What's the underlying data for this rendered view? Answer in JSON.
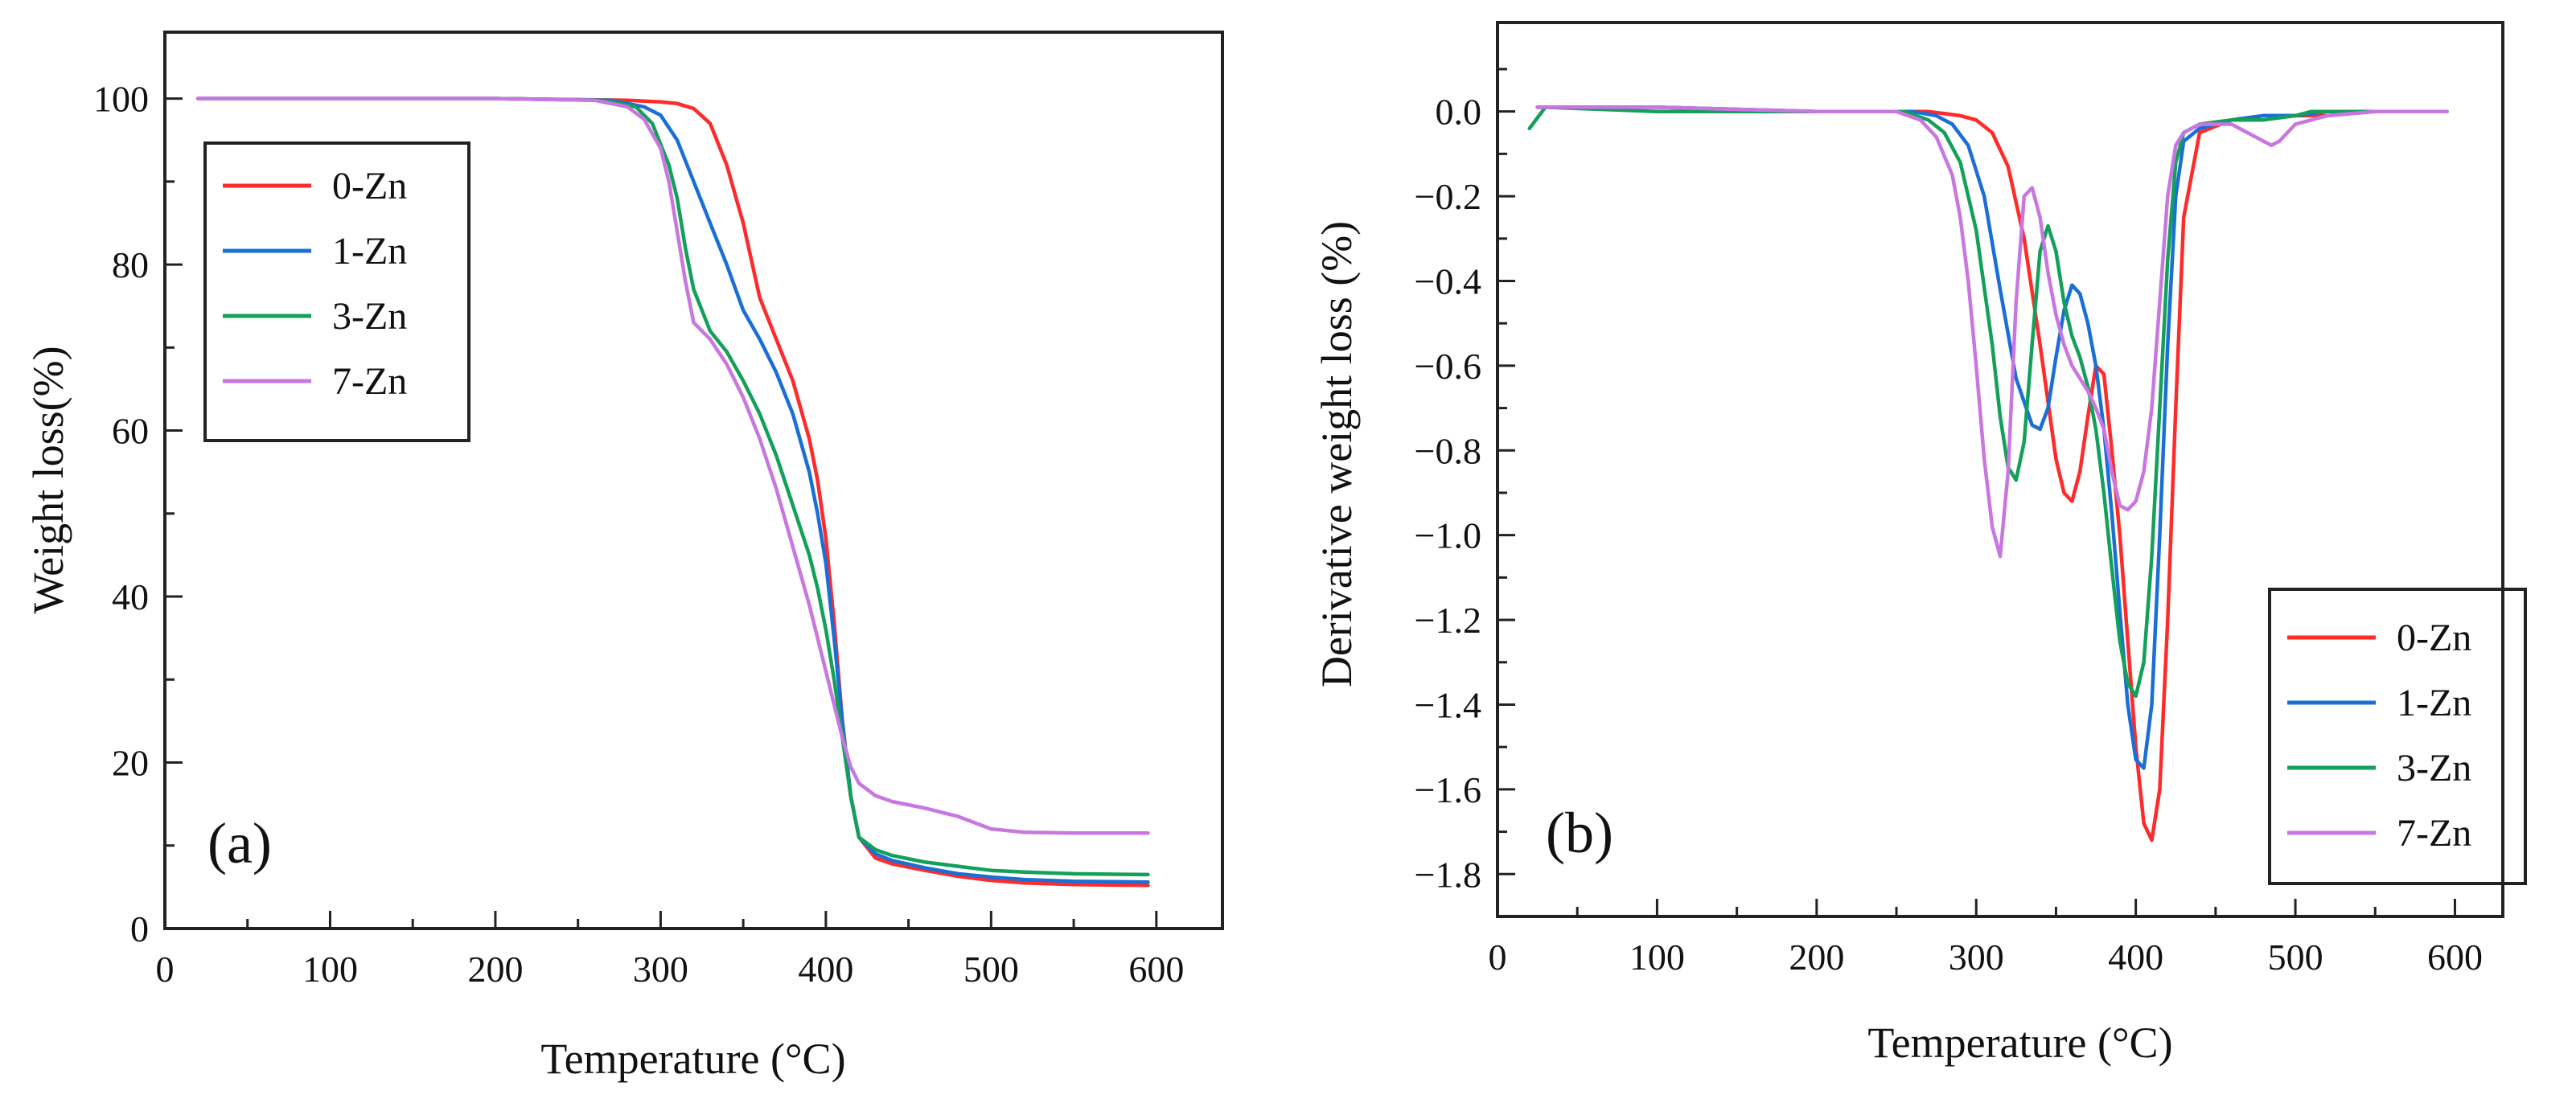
{
  "chart_data": [
    {
      "type": "line",
      "panel": "(a)",
      "xlabel": "Temperature (°C)",
      "ylabel": "Weight loss(%)",
      "xlim": [
        0,
        640
      ],
      "ylim": [
        0,
        108
      ],
      "xticks": [
        0,
        100,
        200,
        300,
        400,
        500,
        600
      ],
      "yticks": [
        0,
        20,
        40,
        60,
        80,
        100
      ],
      "legend_position": "top-left",
      "series": [
        {
          "name": "0-Zn",
          "color": "#ff2a2a",
          "x": [
            20,
            100,
            200,
            280,
            300,
            310,
            320,
            330,
            340,
            350,
            360,
            370,
            380,
            390,
            395,
            400,
            405,
            410,
            415,
            420,
            430,
            440,
            460,
            480,
            500,
            520,
            550,
            595
          ],
          "y": [
            100,
            100,
            100,
            99.8,
            99.6,
            99.4,
            98.8,
            97,
            92,
            85,
            76,
            71,
            66,
            59,
            54,
            47,
            37,
            25,
            16,
            11,
            8.5,
            7.8,
            7,
            6.3,
            5.8,
            5.5,
            5.3,
            5.2
          ]
        },
        {
          "name": "1-Zn",
          "color": "#1a6fd6",
          "x": [
            20,
            100,
            200,
            270,
            290,
            300,
            310,
            320,
            330,
            340,
            350,
            360,
            370,
            380,
            390,
            395,
            400,
            405,
            410,
            415,
            420,
            430,
            440,
            460,
            480,
            500,
            520,
            550,
            595
          ],
          "y": [
            100,
            100,
            100,
            99.8,
            99,
            98,
            95,
            90,
            85,
            80,
            74.5,
            71,
            67,
            62,
            55,
            50,
            44,
            35,
            25,
            16,
            11,
            9,
            8.2,
            7.3,
            6.6,
            6.2,
            5.9,
            5.7,
            5.6
          ]
        },
        {
          "name": "3-Zn",
          "color": "#13a05a",
          "x": [
            20,
            100,
            200,
            265,
            285,
            295,
            305,
            310,
            315,
            320,
            330,
            340,
            350,
            360,
            370,
            380,
            390,
            395,
            400,
            405,
            410,
            415,
            420,
            430,
            440,
            460,
            480,
            500,
            520,
            550,
            595
          ],
          "y": [
            100,
            100,
            100,
            99.8,
            99,
            97,
            92,
            88,
            82,
            77,
            72,
            69.5,
            66,
            62,
            57,
            51,
            45,
            41,
            36,
            30,
            23,
            16,
            11,
            9.5,
            8.8,
            8,
            7.5,
            7,
            6.8,
            6.6,
            6.5
          ]
        },
        {
          "name": "7-Zn",
          "color": "#c877e0",
          "x": [
            20,
            100,
            200,
            260,
            280,
            290,
            300,
            305,
            310,
            315,
            320,
            330,
            340,
            350,
            360,
            370,
            380,
            390,
            395,
            400,
            405,
            410,
            415,
            420,
            430,
            440,
            460,
            480,
            500,
            520,
            550,
            595
          ],
          "y": [
            100,
            100,
            100,
            99.8,
            99,
            97.5,
            94,
            90,
            84,
            78,
            73,
            71,
            68,
            64,
            59,
            53,
            46,
            39,
            35,
            31,
            27,
            23,
            19.5,
            17.5,
            16,
            15.3,
            14.5,
            13.5,
            12,
            11.6,
            11.5,
            11.5
          ]
        }
      ]
    },
    {
      "type": "line",
      "panel": "(b)",
      "xlabel": "Temperature (°C)",
      "ylabel": "Derivative weight loss (%)",
      "xlim": [
        0,
        630
      ],
      "ylim": [
        -1.9,
        0.21
      ],
      "xticks": [
        0,
        100,
        200,
        300,
        400,
        500,
        600
      ],
      "yticks": [
        0.0,
        -0.2,
        -0.4,
        -0.6,
        -0.8,
        -1.0,
        -1.2,
        -1.4,
        -1.6,
        -1.8
      ],
      "legend_position": "bottom-right",
      "series": [
        {
          "name": "0-Zn",
          "color": "#ff2a2a",
          "x": [
            25,
            100,
            200,
            270,
            290,
            300,
            310,
            320,
            330,
            340,
            350,
            355,
            360,
            365,
            370,
            375,
            380,
            385,
            390,
            395,
            400,
            405,
            410,
            415,
            420,
            425,
            430,
            440,
            460,
            480,
            500,
            520,
            550,
            595
          ],
          "y": [
            0.01,
            0.01,
            0,
            0,
            -0.01,
            -0.02,
            -0.05,
            -0.13,
            -0.3,
            -0.55,
            -0.82,
            -0.9,
            -0.92,
            -0.85,
            -0.72,
            -0.6,
            -0.62,
            -0.8,
            -1.0,
            -1.25,
            -1.5,
            -1.68,
            -1.72,
            -1.6,
            -1.2,
            -0.7,
            -0.25,
            -0.05,
            -0.02,
            -0.01,
            -0.01,
            -0.01,
            0,
            0
          ]
        },
        {
          "name": "1-Zn",
          "color": "#1a6fd6",
          "x": [
            25,
            100,
            200,
            260,
            275,
            285,
            295,
            305,
            315,
            325,
            335,
            340,
            345,
            350,
            355,
            360,
            365,
            370,
            375,
            380,
            385,
            390,
            395,
            400,
            405,
            410,
            415,
            420,
            425,
            430,
            440,
            460,
            480,
            500,
            520,
            550,
            595
          ],
          "y": [
            0.01,
            0.01,
            0,
            0,
            -0.01,
            -0.03,
            -0.08,
            -0.2,
            -0.42,
            -0.63,
            -0.74,
            -0.75,
            -0.7,
            -0.58,
            -0.47,
            -0.41,
            -0.43,
            -0.5,
            -0.6,
            -0.75,
            -0.95,
            -1.18,
            -1.4,
            -1.53,
            -1.55,
            -1.4,
            -1.0,
            -0.55,
            -0.2,
            -0.07,
            -0.04,
            -0.02,
            -0.01,
            -0.01,
            0,
            0,
            0
          ]
        },
        {
          "name": "3-Zn",
          "color": "#13a05a",
          "x": [
            20,
            30,
            100,
            200,
            255,
            270,
            280,
            290,
            300,
            310,
            315,
            320,
            325,
            330,
            335,
            340,
            345,
            350,
            355,
            360,
            365,
            370,
            375,
            380,
            385,
            390,
            395,
            400,
            405,
            410,
            415,
            420,
            425,
            430,
            440,
            460,
            480,
            500,
            510,
            550,
            595
          ],
          "y": [
            -0.04,
            0.01,
            0,
            0,
            0,
            -0.02,
            -0.05,
            -0.12,
            -0.28,
            -0.55,
            -0.72,
            -0.84,
            -0.87,
            -0.78,
            -0.55,
            -0.33,
            -0.27,
            -0.33,
            -0.45,
            -0.53,
            -0.58,
            -0.65,
            -0.75,
            -0.9,
            -1.08,
            -1.25,
            -1.35,
            -1.38,
            -1.3,
            -1.05,
            -0.7,
            -0.35,
            -0.12,
            -0.05,
            -0.03,
            -0.02,
            -0.02,
            -0.01,
            0,
            0,
            0
          ]
        },
        {
          "name": "7-Zn",
          "color": "#c877e0",
          "x": [
            25,
            35,
            100,
            200,
            250,
            265,
            275,
            285,
            290,
            295,
            300,
            305,
            310,
            315,
            320,
            325,
            330,
            335,
            340,
            345,
            350,
            355,
            360,
            365,
            370,
            375,
            380,
            385,
            390,
            395,
            400,
            405,
            410,
            415,
            420,
            425,
            430,
            440,
            460,
            470,
            480,
            485,
            490,
            500,
            520,
            550,
            595
          ],
          "y": [
            0.01,
            0.01,
            0.01,
            0,
            0,
            -0.02,
            -0.06,
            -0.15,
            -0.25,
            -0.4,
            -0.6,
            -0.82,
            -0.98,
            -1.05,
            -0.85,
            -0.45,
            -0.2,
            -0.18,
            -0.25,
            -0.38,
            -0.48,
            -0.55,
            -0.6,
            -0.63,
            -0.66,
            -0.7,
            -0.75,
            -0.85,
            -0.93,
            -0.94,
            -0.92,
            -0.85,
            -0.7,
            -0.45,
            -0.2,
            -0.08,
            -0.05,
            -0.03,
            -0.03,
            -0.05,
            -0.07,
            -0.08,
            -0.07,
            -0.03,
            -0.01,
            0,
            0
          ]
        }
      ]
    }
  ]
}
